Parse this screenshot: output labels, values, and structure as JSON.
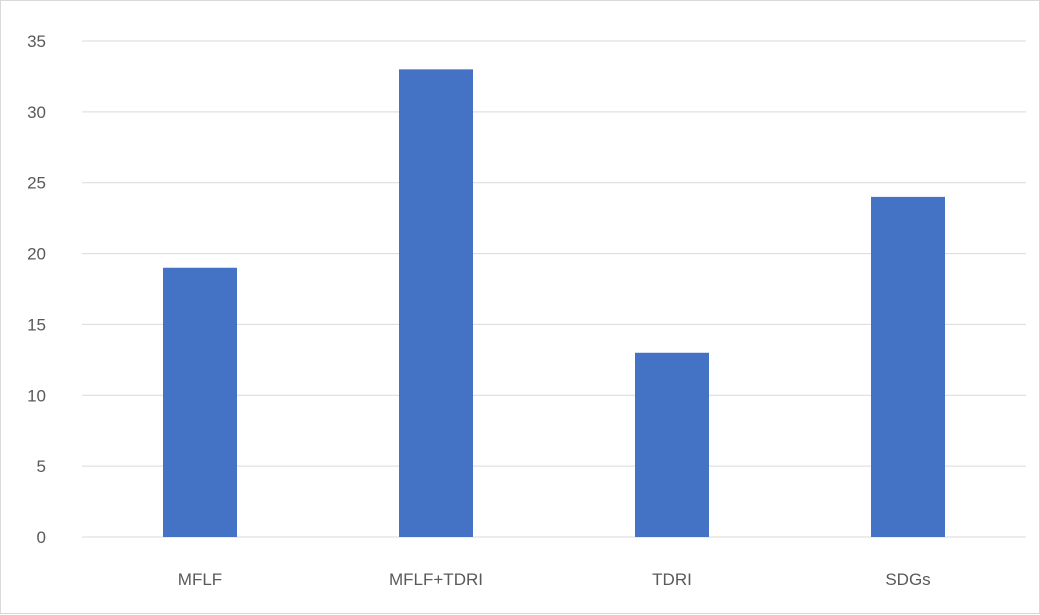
{
  "chart_data": {
    "type": "bar",
    "categories": [
      "MFLF",
      "MFLF+TDRI",
      "TDRI",
      "SDGs"
    ],
    "values": [
      19,
      33,
      13,
      24
    ],
    "ylim": [
      0,
      35
    ],
    "yticks": [
      0,
      5,
      10,
      15,
      20,
      25,
      30,
      35
    ],
    "grid": true,
    "legend": "none",
    "bar_color": "#4472c4",
    "grid_color": "#d9d9d9",
    "tick_label_color": "#595959"
  }
}
